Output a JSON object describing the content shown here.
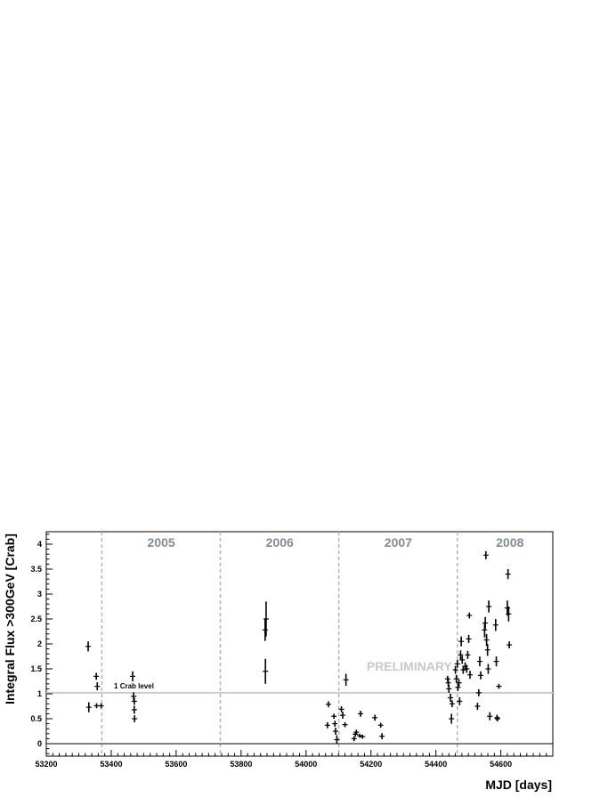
{
  "chart_data": {
    "type": "scatter",
    "xlabel": "MJD [days]",
    "ylabel": "Integral Flux >300GeV [Crab]",
    "xlim": [
      53200,
      54760
    ],
    "ylim": [
      -0.25,
      4.25
    ],
    "x_ticks": [
      53200,
      53400,
      53600,
      53800,
      54000,
      54200,
      54400,
      54600
    ],
    "y_ticks": [
      0,
      0.5,
      1,
      1.5,
      2,
      2.5,
      3,
      3.5,
      4
    ],
    "x_tick_labels": [
      "53200",
      "53400",
      "53600",
      "53800",
      "54000",
      "54200",
      "54400",
      "54600"
    ],
    "y_tick_labels": [
      "0",
      "0.5",
      "1",
      "1.5",
      "2",
      "2.5",
      "3",
      "3.5",
      "4"
    ],
    "grid": false,
    "reference_line": {
      "y": 1.02,
      "label": "1 Crab level",
      "color": "#cccccc"
    },
    "zero_line": {
      "y": 0
    },
    "year_boundaries": [
      53371,
      53736,
      54101,
      54466
    ],
    "year_labels": [
      {
        "text": "2005",
        "x": 53554
      },
      {
        "text": "2006",
        "x": 53919
      },
      {
        "text": "2007",
        "x": 54284
      },
      {
        "text": "2008",
        "x": 54628
      }
    ],
    "watermark": "PRELIMINARY",
    "series": [
      {
        "points": [
          {
            "x": 53329,
            "y": 1.95,
            "err": 0.1
          },
          {
            "x": 53331,
            "y": 0.73,
            "err": 0.1
          },
          {
            "x": 53354,
            "y": 1.35,
            "err": 0.07
          },
          {
            "x": 53357,
            "y": 1.15,
            "err": 0.08
          },
          {
            "x": 53355,
            "y": 0.76,
            "err": 0.05
          },
          {
            "x": 53369,
            "y": 0.76,
            "err": 0.05
          },
          {
            "x": 53466,
            "y": 1.35,
            "err": 0.1
          },
          {
            "x": 53469,
            "y": 0.95,
            "err": 0.08
          },
          {
            "x": 53471,
            "y": 0.85,
            "err": 0.07
          },
          {
            "x": 53471,
            "y": 0.68,
            "err": 0.08
          },
          {
            "x": 53472,
            "y": 0.5,
            "err": 0.07
          },
          {
            "x": 53874,
            "y": 2.28,
            "err": 0.22
          },
          {
            "x": 53877,
            "y": 2.5,
            "err": 0.35
          },
          {
            "x": 53875,
            "y": 1.45,
            "err": 0.25
          },
          {
            "x": 54069,
            "y": 0.79,
            "err": 0.06
          },
          {
            "x": 54066,
            "y": 0.37,
            "err": 0.06
          },
          {
            "x": 54086,
            "y": 0.55,
            "err": 0.05
          },
          {
            "x": 54089,
            "y": 0.4,
            "err": 0.06
          },
          {
            "x": 54091,
            "y": 0.25,
            "err": 0.07
          },
          {
            "x": 54095,
            "y": 0.08,
            "err": 0.09
          },
          {
            "x": 54109,
            "y": 0.69,
            "err": 0.06
          },
          {
            "x": 54113,
            "y": 0.57,
            "err": 0.07
          },
          {
            "x": 54120,
            "y": 0.38,
            "err": 0.05
          },
          {
            "x": 54123,
            "y": 1.28,
            "err": 0.12
          },
          {
            "x": 54148,
            "y": 0.1,
            "err": 0.05
          },
          {
            "x": 54152,
            "y": 0.19,
            "err": 0.05
          },
          {
            "x": 54155,
            "y": 0.23,
            "err": 0.05
          },
          {
            "x": 54165,
            "y": 0.16,
            "err": 0.04
          },
          {
            "x": 54168,
            "y": 0.6,
            "err": 0.06
          },
          {
            "x": 54174,
            "y": 0.14,
            "err": 0.04
          },
          {
            "x": 54212,
            "y": 0.52,
            "err": 0.06
          },
          {
            "x": 54230,
            "y": 0.37,
            "err": 0.05
          },
          {
            "x": 54234,
            "y": 0.15,
            "err": 0.06
          },
          {
            "x": 54436,
            "y": 1.3,
            "err": 0.06
          },
          {
            "x": 54438,
            "y": 1.22,
            "err": 0.08
          },
          {
            "x": 54440,
            "y": 1.1,
            "err": 0.08
          },
          {
            "x": 54445,
            "y": 0.92,
            "err": 0.08
          },
          {
            "x": 54448,
            "y": 0.5,
            "err": 0.1
          },
          {
            "x": 54450,
            "y": 0.8,
            "err": 0.07
          },
          {
            "x": 54460,
            "y": 1.48,
            "err": 0.08
          },
          {
            "x": 54463,
            "y": 1.3,
            "err": 0.08
          },
          {
            "x": 54466,
            "y": 1.6,
            "err": 0.08
          },
          {
            "x": 54468,
            "y": 1.13,
            "err": 0.07
          },
          {
            "x": 54471,
            "y": 1.22,
            "err": 0.07
          },
          {
            "x": 54473,
            "y": 0.85,
            "err": 0.08
          },
          {
            "x": 54476,
            "y": 1.78,
            "err": 0.09
          },
          {
            "x": 54478,
            "y": 2.05,
            "err": 0.1
          },
          {
            "x": 54481,
            "y": 1.68,
            "err": 0.08
          },
          {
            "x": 54484,
            "y": 1.48,
            "err": 0.08
          },
          {
            "x": 54490,
            "y": 1.55,
            "err": 0.08
          },
          {
            "x": 54495,
            "y": 1.5,
            "err": 0.08
          },
          {
            "x": 54498,
            "y": 1.78,
            "err": 0.08
          },
          {
            "x": 54501,
            "y": 2.1,
            "err": 0.08
          },
          {
            "x": 54503,
            "y": 2.57,
            "err": 0.06
          },
          {
            "x": 54505,
            "y": 1.38,
            "err": 0.08
          },
          {
            "x": 54528,
            "y": 0.75,
            "err": 0.07
          },
          {
            "x": 54532,
            "y": 1.02,
            "err": 0.07
          },
          {
            "x": 54535,
            "y": 1.65,
            "err": 0.1
          },
          {
            "x": 54538,
            "y": 1.37,
            "err": 0.08
          },
          {
            "x": 54550,
            "y": 2.28,
            "err": 0.15
          },
          {
            "x": 54552,
            "y": 2.42,
            "err": 0.12
          },
          {
            "x": 54554,
            "y": 3.78,
            "err": 0.08
          },
          {
            "x": 54556,
            "y": 2.08,
            "err": 0.12
          },
          {
            "x": 54559,
            "y": 1.88,
            "err": 0.12
          },
          {
            "x": 54561,
            "y": 1.5,
            "err": 0.1
          },
          {
            "x": 54563,
            "y": 2.75,
            "err": 0.12
          },
          {
            "x": 54566,
            "y": 0.55,
            "err": 0.08
          },
          {
            "x": 54584,
            "y": 2.38,
            "err": 0.12
          },
          {
            "x": 54586,
            "y": 1.65,
            "err": 0.1
          },
          {
            "x": 54588,
            "y": 0.52,
            "err": 0.06
          },
          {
            "x": 54590,
            "y": 0.5,
            "err": 0.05
          },
          {
            "x": 54594,
            "y": 1.15,
            "err": 0.05
          },
          {
            "x": 54620,
            "y": 2.72,
            "err": 0.15
          },
          {
            "x": 54622,
            "y": 3.4,
            "err": 0.1
          },
          {
            "x": 54624,
            "y": 2.6,
            "err": 0.15
          },
          {
            "x": 54626,
            "y": 1.98,
            "err": 0.07
          }
        ]
      }
    ]
  }
}
